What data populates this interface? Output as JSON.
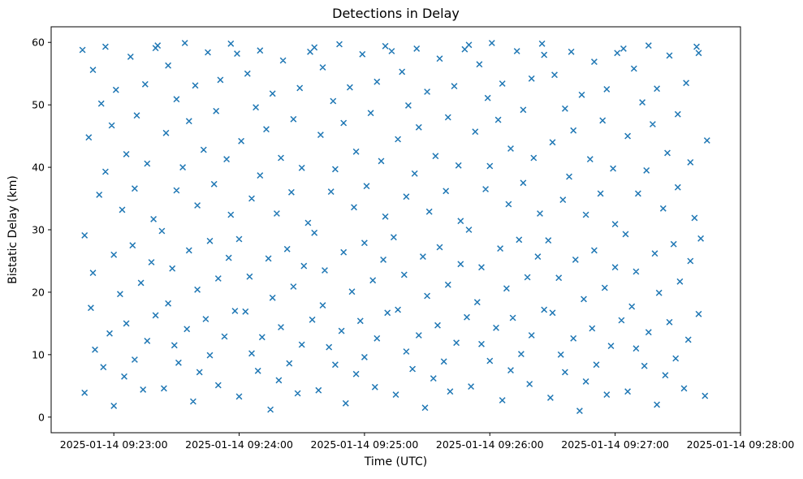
{
  "figure": {
    "title": "Detections in Delay",
    "xlabel": "Time (UTC)",
    "ylabel": "Bistatic Delay (km)"
  },
  "chart_data": {
    "type": "scatter",
    "title": "Detections in Delay",
    "xlabel": "Time (UTC)",
    "ylabel": "Bistatic Delay (km)",
    "marker": "x",
    "marker_color": "#1f77b4",
    "grid": false,
    "legend": "none",
    "x_axis": {
      "x_unit": "seconds since 2025-01-14 09:22:30 UTC",
      "range_seconds": [
        0,
        330
      ],
      "tick_offsets_seconds": [
        30,
        90,
        150,
        210,
        270,
        330
      ],
      "tick_labels": [
        "2025-01-14 09:23:00",
        "2025-01-14 09:24:00",
        "2025-01-14 09:25:00",
        "2025-01-14 09:26:00",
        "2025-01-14 09:27:00",
        "2025-01-14 09:28:00"
      ]
    },
    "y_axis": {
      "ticks": [
        0,
        10,
        20,
        30,
        40,
        50,
        60
      ],
      "range": [
        -2.5,
        62.5
      ]
    },
    "points": [
      [
        15,
        58.8
      ],
      [
        16,
        29.1
      ],
      [
        16,
        3.9
      ],
      [
        18,
        44.8
      ],
      [
        19,
        17.5
      ],
      [
        20,
        55.6
      ],
      [
        20,
        23.1
      ],
      [
        21,
        10.8
      ],
      [
        23,
        35.6
      ],
      [
        24,
        50.2
      ],
      [
        25,
        8.0
      ],
      [
        26,
        39.3
      ],
      [
        26,
        59.3
      ],
      [
        28,
        13.4
      ],
      [
        29,
        46.7
      ],
      [
        30,
        26.0
      ],
      [
        30,
        1.8
      ],
      [
        31,
        52.4
      ],
      [
        33,
        19.7
      ],
      [
        34,
        33.2
      ],
      [
        35,
        6.5
      ],
      [
        36,
        42.1
      ],
      [
        36,
        15.0
      ],
      [
        38,
        57.7
      ],
      [
        39,
        27.5
      ],
      [
        40,
        9.2
      ],
      [
        40,
        36.6
      ],
      [
        41,
        48.3
      ],
      [
        43,
        21.5
      ],
      [
        44,
        4.4
      ],
      [
        45,
        53.3
      ],
      [
        46,
        12.2
      ],
      [
        46,
        40.6
      ],
      [
        48,
        24.8
      ],
      [
        49,
        31.7
      ],
      [
        50,
        59.1
      ],
      [
        50,
        16.3
      ],
      [
        51,
        59.5
      ],
      [
        53,
        29.8
      ],
      [
        54,
        4.6
      ],
      [
        55,
        45.5
      ],
      [
        56,
        18.2
      ],
      [
        56,
        56.3
      ],
      [
        58,
        23.8
      ],
      [
        59,
        11.5
      ],
      [
        60,
        36.3
      ],
      [
        60,
        50.9
      ],
      [
        61,
        8.7
      ],
      [
        63,
        40.0
      ],
      [
        64,
        59.9
      ],
      [
        65,
        14.1
      ],
      [
        66,
        47.4
      ],
      [
        66,
        26.7
      ],
      [
        68,
        2.5
      ],
      [
        69,
        53.1
      ],
      [
        70,
        20.4
      ],
      [
        70,
        33.9
      ],
      [
        71,
        7.2
      ],
      [
        73,
        42.8
      ],
      [
        74,
        15.7
      ],
      [
        75,
        58.4
      ],
      [
        76,
        28.2
      ],
      [
        76,
        9.9
      ],
      [
        78,
        37.3
      ],
      [
        79,
        49.0
      ],
      [
        80,
        22.2
      ],
      [
        80,
        5.1
      ],
      [
        81,
        54.0
      ],
      [
        83,
        12.9
      ],
      [
        84,
        41.3
      ],
      [
        85,
        25.5
      ],
      [
        86,
        32.4
      ],
      [
        86,
        59.8
      ],
      [
        88,
        17.0
      ],
      [
        89,
        58.2
      ],
      [
        90,
        28.5
      ],
      [
        90,
        3.3
      ],
      [
        91,
        44.2
      ],
      [
        93,
        16.9
      ],
      [
        94,
        55.0
      ],
      [
        95,
        22.5
      ],
      [
        96,
        10.2
      ],
      [
        96,
        35.0
      ],
      [
        98,
        49.6
      ],
      [
        99,
        7.4
      ],
      [
        100,
        38.7
      ],
      [
        100,
        58.7
      ],
      [
        101,
        12.8
      ],
      [
        103,
        46.1
      ],
      [
        104,
        25.4
      ],
      [
        105,
        1.2
      ],
      [
        106,
        51.8
      ],
      [
        106,
        19.1
      ],
      [
        108,
        32.6
      ],
      [
        109,
        5.9
      ],
      [
        110,
        41.5
      ],
      [
        110,
        14.4
      ],
      [
        111,
        57.1
      ],
      [
        113,
        26.9
      ],
      [
        114,
        8.6
      ],
      [
        115,
        36.0
      ],
      [
        116,
        47.7
      ],
      [
        116,
        20.9
      ],
      [
        118,
        3.8
      ],
      [
        119,
        52.7
      ],
      [
        120,
        11.6
      ],
      [
        120,
        39.9
      ],
      [
        121,
        24.2
      ],
      [
        123,
        31.1
      ],
      [
        124,
        58.5
      ],
      [
        125,
        15.6
      ],
      [
        126,
        59.2
      ],
      [
        126,
        29.5
      ],
      [
        128,
        4.3
      ],
      [
        129,
        45.2
      ],
      [
        130,
        17.9
      ],
      [
        130,
        56.0
      ],
      [
        131,
        23.5
      ],
      [
        133,
        11.2
      ],
      [
        134,
        36.1
      ],
      [
        135,
        50.6
      ],
      [
        136,
        8.4
      ],
      [
        136,
        39.7
      ],
      [
        138,
        59.7
      ],
      [
        139,
        13.8
      ],
      [
        140,
        47.1
      ],
      [
        140,
        26.4
      ],
      [
        141,
        2.2
      ],
      [
        143,
        52.8
      ],
      [
        144,
        20.1
      ],
      [
        145,
        33.6
      ],
      [
        146,
        6.9
      ],
      [
        146,
        42.5
      ],
      [
        148,
        15.4
      ],
      [
        149,
        58.1
      ],
      [
        150,
        27.9
      ],
      [
        150,
        9.6
      ],
      [
        151,
        37.0
      ],
      [
        153,
        48.7
      ],
      [
        154,
        21.9
      ],
      [
        155,
        4.8
      ],
      [
        156,
        53.7
      ],
      [
        156,
        12.6
      ],
      [
        158,
        41.0
      ],
      [
        159,
        25.2
      ],
      [
        160,
        32.1
      ],
      [
        160,
        59.4
      ],
      [
        161,
        16.7
      ],
      [
        163,
        58.6
      ],
      [
        164,
        28.8
      ],
      [
        165,
        3.6
      ],
      [
        166,
        44.5
      ],
      [
        166,
        17.2
      ],
      [
        168,
        55.3
      ],
      [
        169,
        22.8
      ],
      [
        170,
        10.5
      ],
      [
        170,
        35.3
      ],
      [
        171,
        49.9
      ],
      [
        173,
        7.7
      ],
      [
        174,
        39.0
      ],
      [
        175,
        59.0
      ],
      [
        176,
        13.1
      ],
      [
        176,
        46.4
      ],
      [
        178,
        25.7
      ],
      [
        179,
        1.5
      ],
      [
        180,
        52.1
      ],
      [
        180,
        19.4
      ],
      [
        181,
        32.9
      ],
      [
        183,
        6.2
      ],
      [
        184,
        41.8
      ],
      [
        185,
        14.7
      ],
      [
        186,
        57.4
      ],
      [
        186,
        27.2
      ],
      [
        188,
        8.9
      ],
      [
        189,
        36.2
      ],
      [
        190,
        48.0
      ],
      [
        190,
        21.2
      ],
      [
        191,
        4.1
      ],
      [
        193,
        53.0
      ],
      [
        194,
        11.9
      ],
      [
        195,
        40.3
      ],
      [
        196,
        24.5
      ],
      [
        196,
        31.4
      ],
      [
        198,
        58.9
      ],
      [
        199,
        16.0
      ],
      [
        200,
        59.6
      ],
      [
        200,
        30.0
      ],
      [
        201,
        4.9
      ],
      [
        203,
        45.7
      ],
      [
        204,
        18.4
      ],
      [
        205,
        56.5
      ],
      [
        206,
        24.0
      ],
      [
        206,
        11.7
      ],
      [
        208,
        36.5
      ],
      [
        209,
        51.1
      ],
      [
        210,
        9.0
      ],
      [
        210,
        40.2
      ],
      [
        211,
        59.9
      ],
      [
        213,
        14.3
      ],
      [
        214,
        47.6
      ],
      [
        215,
        27.0
      ],
      [
        216,
        2.7
      ],
      [
        216,
        53.4
      ],
      [
        218,
        20.6
      ],
      [
        219,
        34.1
      ],
      [
        220,
        7.5
      ],
      [
        220,
        43.0
      ],
      [
        221,
        15.9
      ],
      [
        223,
        58.6
      ],
      [
        224,
        28.4
      ],
      [
        225,
        10.1
      ],
      [
        226,
        37.5
      ],
      [
        226,
        49.2
      ],
      [
        228,
        22.4
      ],
      [
        229,
        5.3
      ],
      [
        230,
        54.2
      ],
      [
        230,
        13.1
      ],
      [
        231,
        41.5
      ],
      [
        233,
        25.7
      ],
      [
        234,
        32.6
      ],
      [
        235,
        59.8
      ],
      [
        236,
        17.2
      ],
      [
        236,
        58.0
      ],
      [
        238,
        28.3
      ],
      [
        239,
        3.1
      ],
      [
        240,
        44.0
      ],
      [
        240,
        16.7
      ],
      [
        241,
        54.8
      ],
      [
        243,
        22.3
      ],
      [
        244,
        10.0
      ],
      [
        245,
        34.8
      ],
      [
        246,
        49.4
      ],
      [
        246,
        7.2
      ],
      [
        248,
        38.5
      ],
      [
        249,
        58.5
      ],
      [
        250,
        12.6
      ],
      [
        250,
        45.9
      ],
      [
        251,
        25.2
      ],
      [
        253,
        1.0
      ],
      [
        254,
        51.6
      ],
      [
        255,
        18.9
      ],
      [
        256,
        32.4
      ],
      [
        256,
        5.7
      ],
      [
        258,
        41.3
      ],
      [
        259,
        14.2
      ],
      [
        260,
        56.9
      ],
      [
        260,
        26.7
      ],
      [
        261,
        8.4
      ],
      [
        263,
        35.8
      ],
      [
        264,
        47.5
      ],
      [
        265,
        20.7
      ],
      [
        266,
        3.6
      ],
      [
        266,
        52.5
      ],
      [
        268,
        11.4
      ],
      [
        269,
        39.8
      ],
      [
        270,
        24.0
      ],
      [
        270,
        30.9
      ],
      [
        271,
        58.3
      ],
      [
        273,
        15.5
      ],
      [
        274,
        59.0
      ],
      [
        275,
        29.3
      ],
      [
        276,
        4.1
      ],
      [
        276,
        45.0
      ],
      [
        278,
        17.7
      ],
      [
        279,
        55.8
      ],
      [
        280,
        23.3
      ],
      [
        280,
        11.0
      ],
      [
        281,
        35.8
      ],
      [
        283,
        50.4
      ],
      [
        284,
        8.2
      ],
      [
        285,
        39.5
      ],
      [
        286,
        59.5
      ],
      [
        286,
        13.6
      ],
      [
        288,
        46.9
      ],
      [
        289,
        26.2
      ],
      [
        290,
        2.0
      ],
      [
        290,
        52.6
      ],
      [
        291,
        19.9
      ],
      [
        293,
        33.4
      ],
      [
        294,
        6.7
      ],
      [
        295,
        42.3
      ],
      [
        296,
        15.2
      ],
      [
        296,
        57.9
      ],
      [
        298,
        27.7
      ],
      [
        299,
        9.4
      ],
      [
        300,
        36.8
      ],
      [
        300,
        48.5
      ],
      [
        301,
        21.7
      ],
      [
        303,
        4.6
      ],
      [
        304,
        53.5
      ],
      [
        305,
        12.4
      ],
      [
        306,
        40.8
      ],
      [
        306,
        25.0
      ],
      [
        308,
        31.9
      ],
      [
        309,
        59.3
      ],
      [
        310,
        16.5
      ],
      [
        310,
        58.3
      ],
      [
        311,
        28.6
      ],
      [
        313,
        3.4
      ],
      [
        314,
        44.3
      ]
    ]
  }
}
